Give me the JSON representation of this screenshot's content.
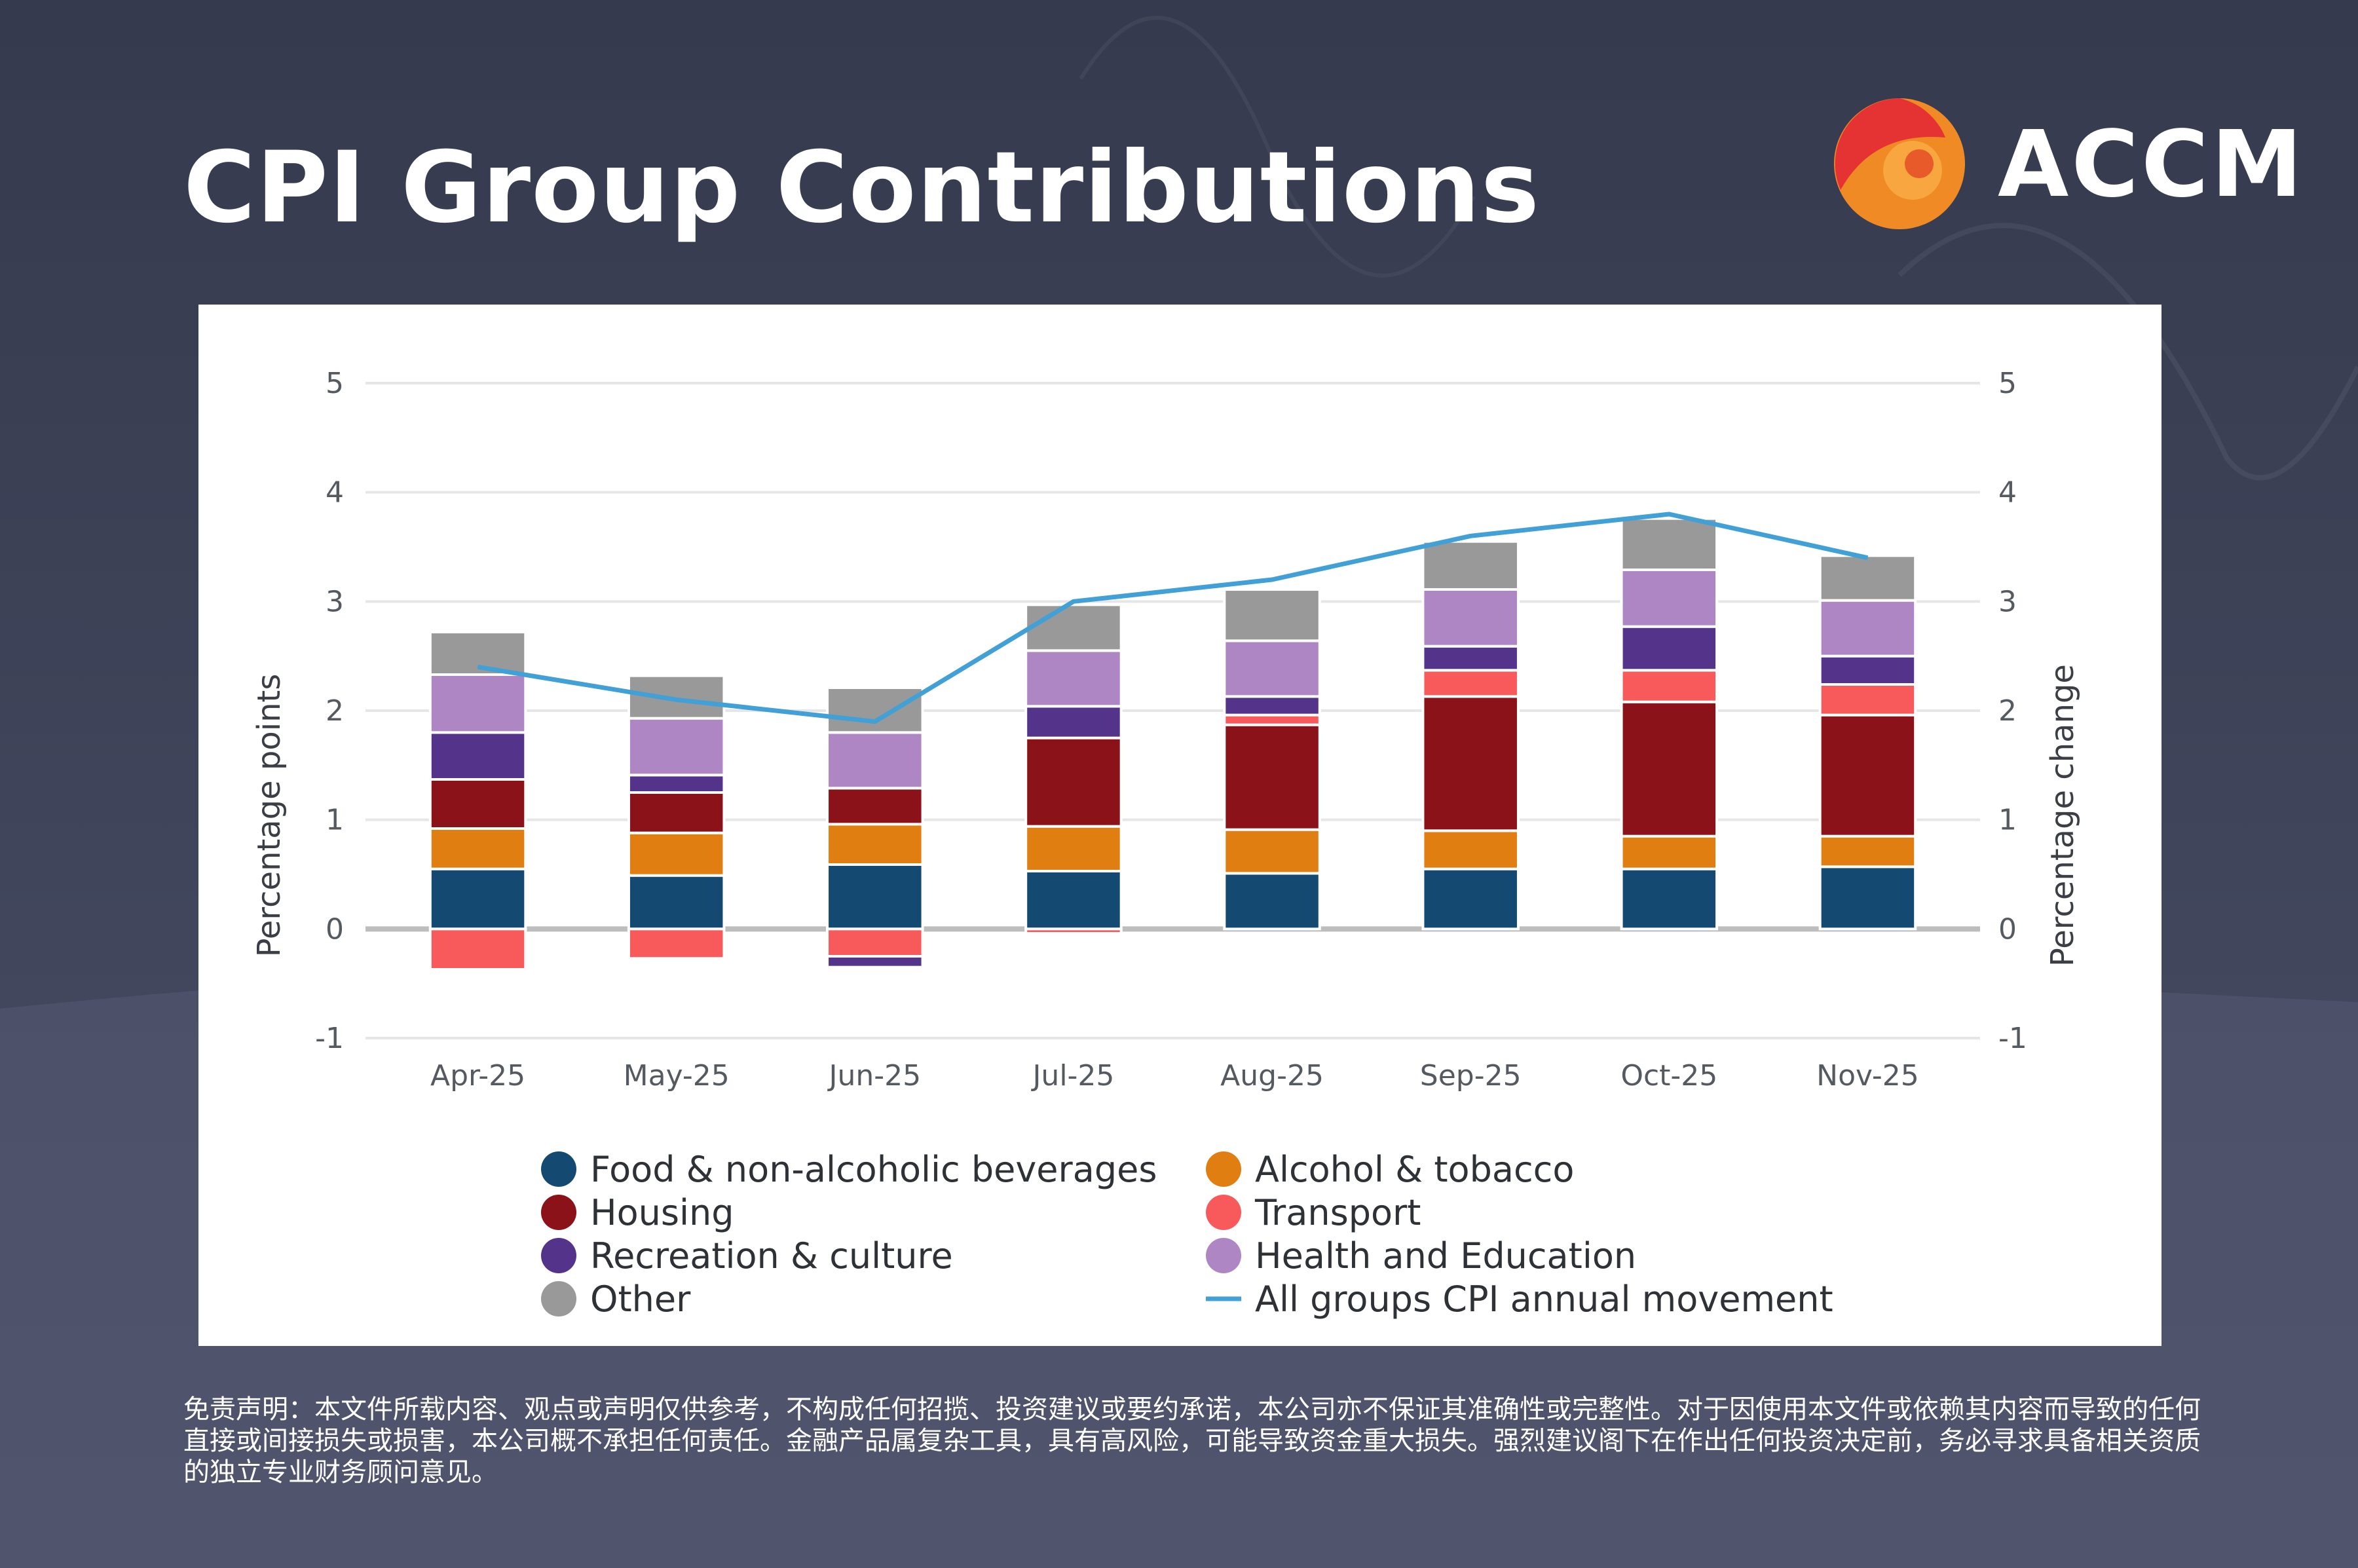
{
  "page": {
    "title": "CPI Group Contributions",
    "logo_text": "ACCM",
    "disclaimer": "免责声明：本文件所载内容、观点或声明仅供参考，不构成任何招揽、投资建议或要约承诺，本公司亦不保证其准确性或完整性。对于因使用本文件或依赖其内容而导致的任何直接或间接损失或损害，本公司概不承担任何责任。金融产品属复杂工具，具有高风险，可能导致资金重大损失。强烈建议阁下在作出任何投资决定前，务必寻求具备相关资质的独立专业财务顾问意见。"
  },
  "colors": {
    "food": "#144a72",
    "alcohol": "#e07e12",
    "housing": "#8b1219",
    "transport": "#f85a5c",
    "recreation": "#54338b",
    "health": "#ae86c4",
    "other": "#999999",
    "cpi_line": "#41a0d6",
    "brand_orange": "#f08a24",
    "brand_red": "#e53232"
  },
  "chart_data": {
    "type": "bar",
    "stacked": true,
    "categories": [
      "Apr-25",
      "May-25",
      "Jun-25",
      "Jul-25",
      "Aug-25",
      "Sep-25",
      "Oct-25",
      "Nov-25"
    ],
    "ylabel": "Percentage points",
    "y2label": "Percentage change",
    "ylim": [
      -1,
      5
    ],
    "y_ticks": [
      "-1",
      "0",
      "1",
      "2",
      "3",
      "4",
      "5"
    ],
    "y2_ticks": [
      "-1",
      "0",
      "1",
      "2",
      "3",
      "4",
      "5"
    ],
    "grid": true,
    "series": [
      {
        "key": "food",
        "name": "Food & non-alcoholic beverages",
        "values": [
          0.55,
          0.49,
          0.59,
          0.53,
          0.51,
          0.55,
          0.55,
          0.57
        ]
      },
      {
        "key": "alcohol",
        "name": "Alcohol & tobacco",
        "values": [
          0.37,
          0.39,
          0.37,
          0.41,
          0.4,
          0.35,
          0.3,
          0.28
        ]
      },
      {
        "key": "housing",
        "name": "Housing",
        "values": [
          0.45,
          0.37,
          0.33,
          0.81,
          0.96,
          1.23,
          1.23,
          1.11
        ]
      },
      {
        "key": "transport",
        "name": "Transport",
        "values": [
          -0.37,
          -0.27,
          -0.25,
          -0.04,
          0.09,
          0.24,
          0.29,
          0.28
        ]
      },
      {
        "key": "recreation",
        "name": "Recreation & culture",
        "values": [
          0.43,
          0.16,
          -0.1,
          0.29,
          0.17,
          0.22,
          0.4,
          0.26
        ]
      },
      {
        "key": "health",
        "name": "Health and Education",
        "values": [
          0.53,
          0.52,
          0.51,
          0.51,
          0.51,
          0.52,
          0.52,
          0.51
        ]
      },
      {
        "key": "other",
        "name": "Other",
        "values": [
          0.39,
          0.39,
          0.41,
          0.42,
          0.47,
          0.44,
          0.47,
          0.41
        ]
      }
    ],
    "line": {
      "name": "All groups CPI annual movement",
      "axis": "right",
      "values": [
        2.4,
        2.1,
        1.9,
        3.0,
        3.2,
        3.6,
        3.8,
        3.4
      ]
    },
    "legend": [
      {
        "label": "Food & non-alcoholic beverages",
        "color_key": "food",
        "kind": "dot"
      },
      {
        "label": "Alcohol & tobacco",
        "color_key": "alcohol",
        "kind": "dot"
      },
      {
        "label": "Housing",
        "color_key": "housing",
        "kind": "dot"
      },
      {
        "label": "Transport",
        "color_key": "transport",
        "kind": "dot"
      },
      {
        "label": "Recreation & culture",
        "color_key": "recreation",
        "kind": "dot"
      },
      {
        "label": "Health and Education",
        "color_key": "health",
        "kind": "dot"
      },
      {
        "label": "Other",
        "color_key": "other",
        "kind": "dot"
      },
      {
        "label": "All groups CPI annual movement",
        "color_key": "cpi_line",
        "kind": "line"
      }
    ]
  }
}
